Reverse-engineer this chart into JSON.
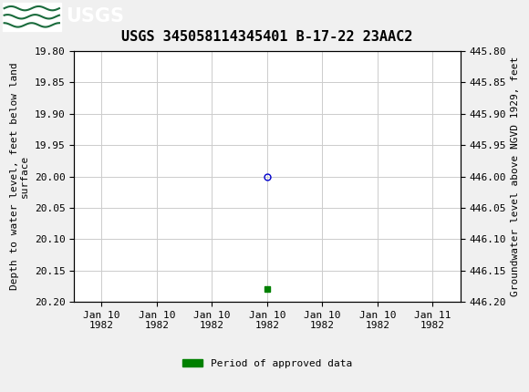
{
  "title": "USGS 345058114345401 B-17-22 23AAC2",
  "ylabel_left": "Depth to water level, feet below land\nsurface",
  "ylabel_right": "Groundwater level above NGVD 1929, feet",
  "ylim_left": [
    19.8,
    20.2
  ],
  "ylim_right": [
    446.2,
    445.8
  ],
  "y_ticks_left": [
    19.8,
    19.85,
    19.9,
    19.95,
    20.0,
    20.05,
    20.1,
    20.15,
    20.2
  ],
  "y_ticks_right": [
    446.2,
    446.15,
    446.1,
    446.05,
    446.0,
    445.95,
    445.9,
    445.85,
    445.8
  ],
  "x_tick_labels": [
    "Jan 10\n1982",
    "Jan 10\n1982",
    "Jan 10\n1982",
    "Jan 10\n1982",
    "Jan 10\n1982",
    "Jan 10\n1982",
    "Jan 11\n1982"
  ],
  "data_point_y": 20.0,
  "data_point_marker": "o",
  "data_point_color": "#0000cc",
  "data_point_facecolor": "none",
  "data_point_size": 5,
  "green_point_y": 20.18,
  "green_point_color": "#008000",
  "green_point_marker": "s",
  "green_point_size": 4,
  "header_bg_color": "#1a6b3c",
  "grid_color": "#cccccc",
  "grid_linewidth": 0.7,
  "bg_color": "#f0f0f0",
  "plot_bg_color": "#ffffff",
  "font_family": "monospace",
  "title_fontsize": 11,
  "axis_label_fontsize": 8,
  "tick_fontsize": 8,
  "legend_label": "Period of approved data",
  "legend_color": "#008000",
  "x_tick_positions": [
    0,
    1,
    2,
    3,
    4,
    5,
    6
  ],
  "data_x": 3,
  "xlim": [
    -0.5,
    6.5
  ]
}
